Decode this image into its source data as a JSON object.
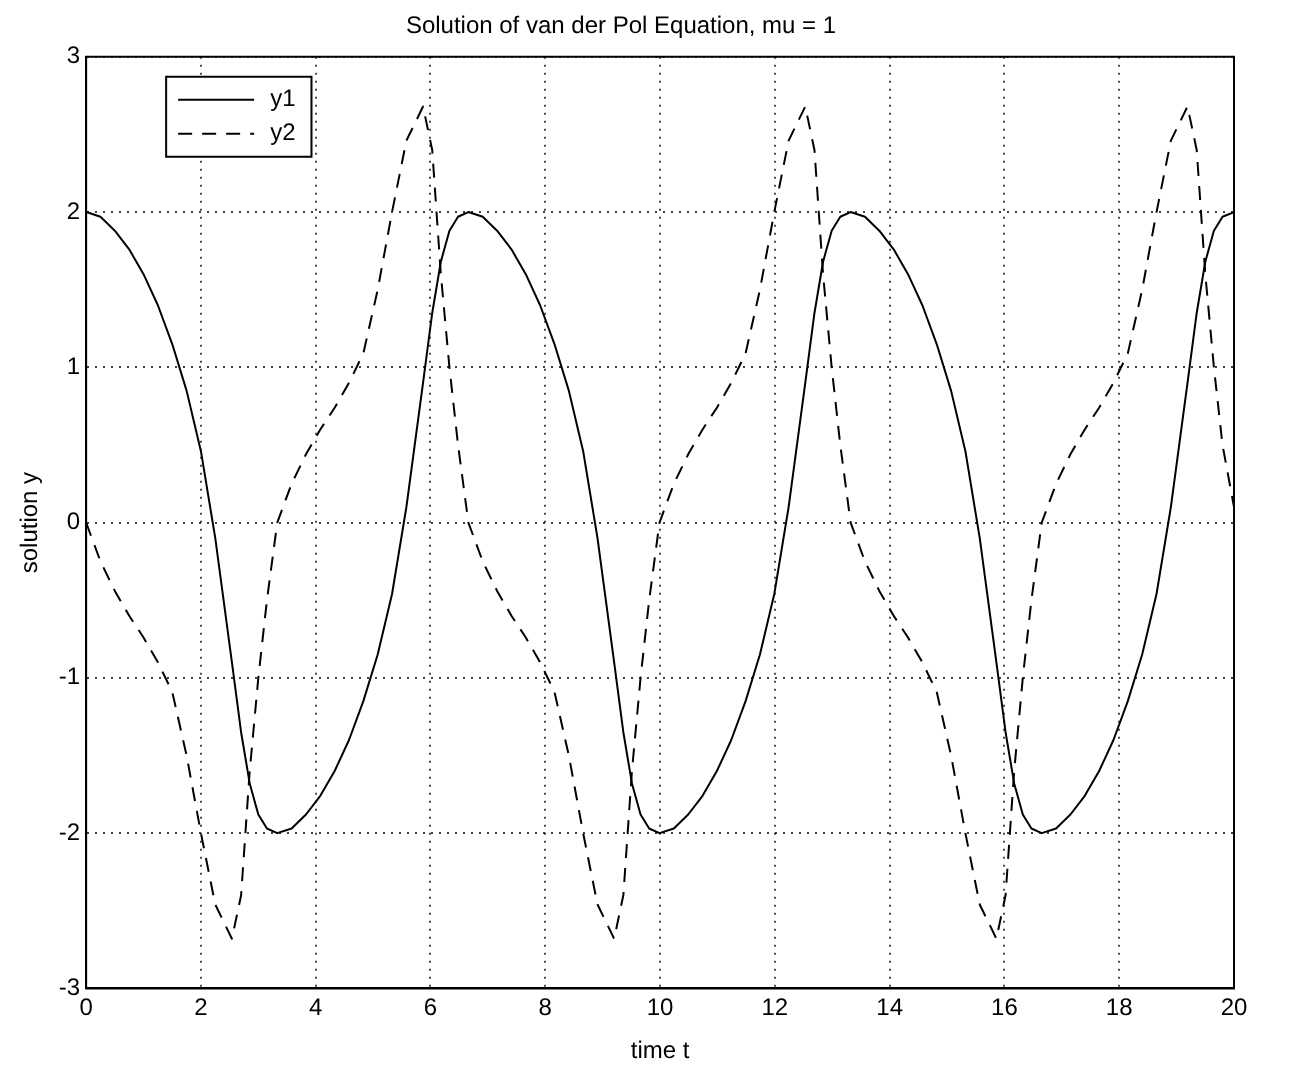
{
  "chart_data": {
    "type": "line",
    "title": "Solution of van der Pol Equation, mu = 1",
    "xlabel": "time t",
    "ylabel": "solution y",
    "x": [
      0,
      0.25,
      0.5,
      0.75,
      1,
      1.25,
      1.5,
      1.75,
      2,
      2.25,
      2.54,
      2.7,
      2.85,
      3,
      3.15,
      3.33,
      3.58,
      3.83,
      4.08,
      4.33,
      4.58,
      4.83,
      5.08,
      5.33,
      5.58,
      5.87,
      6.03,
      6.18,
      6.33,
      6.48,
      6.66,
      6.91,
      7.16,
      7.41,
      7.66,
      7.91,
      8.16,
      8.41,
      8.66,
      8.91,
      9.2,
      9.36,
      9.51,
      9.66,
      9.81,
      9.99,
      10.24,
      10.49,
      10.74,
      10.99,
      11.24,
      11.49,
      11.74,
      11.99,
      12.24,
      12.53,
      12.69,
      12.84,
      12.99,
      13.14,
      13.32,
      13.57,
      13.82,
      14.07,
      14.32,
      14.57,
      14.82,
      15.07,
      15.32,
      15.57,
      15.86,
      16.02,
      16.17,
      16.32,
      16.47,
      16.65,
      16.9,
      17.15,
      17.4,
      17.65,
      17.9,
      18.15,
      18.4,
      18.65,
      18.9,
      19.19,
      19.35,
      19.5,
      19.65,
      19.8,
      20
    ],
    "series": [
      {
        "name": "y1",
        "color": "#000000",
        "line_style": "solid",
        "values": [
          2,
          1.97,
          1.88,
          1.76,
          1.6,
          1.4,
          1.15,
          0.85,
          0.46,
          -0.1,
          -0.9,
          -1.35,
          -1.68,
          -1.88,
          -1.97,
          -2,
          -1.97,
          -1.88,
          -1.76,
          -1.6,
          -1.4,
          -1.15,
          -0.85,
          -0.46,
          0.1,
          0.9,
          1.35,
          1.68,
          1.88,
          1.97,
          2,
          1.97,
          1.88,
          1.76,
          1.6,
          1.4,
          1.15,
          0.85,
          0.46,
          -0.1,
          -0.9,
          -1.35,
          -1.68,
          -1.88,
          -1.97,
          -2,
          -1.97,
          -1.88,
          -1.76,
          -1.6,
          -1.4,
          -1.15,
          -0.85,
          -0.46,
          0.1,
          0.9,
          1.35,
          1.68,
          1.88,
          1.97,
          2,
          1.97,
          1.88,
          1.76,
          1.6,
          1.4,
          1.15,
          0.85,
          0.46,
          -0.1,
          -0.9,
          -1.35,
          -1.68,
          -1.88,
          -1.97,
          -2,
          -1.97,
          -1.88,
          -1.76,
          -1.6,
          -1.4,
          -1.15,
          -0.85,
          -0.46,
          0.1,
          0.9,
          1.35,
          1.68,
          1.88,
          1.97,
          2
        ]
      },
      {
        "name": "y2",
        "color": "#000000",
        "line_style": "dashed",
        "values": [
          0,
          -0.25,
          -0.44,
          -0.6,
          -0.74,
          -0.9,
          -1.09,
          -1.5,
          -2,
          -2.46,
          -2.68,
          -2.4,
          -1.6,
          -1,
          -0.5,
          0,
          0.25,
          0.44,
          0.6,
          0.74,
          0.9,
          1.09,
          1.5,
          2,
          2.46,
          2.68,
          2.4,
          1.6,
          1,
          0.5,
          0,
          -0.25,
          -0.44,
          -0.6,
          -0.74,
          -0.9,
          -1.09,
          -1.5,
          -2,
          -2.46,
          -2.68,
          -2.4,
          -1.6,
          -1,
          -0.5,
          0,
          0.25,
          0.44,
          0.6,
          0.74,
          0.9,
          1.09,
          1.5,
          2,
          2.46,
          2.68,
          2.4,
          1.6,
          1,
          0.5,
          0,
          -0.25,
          -0.44,
          -0.6,
          -0.74,
          -0.9,
          -1.09,
          -1.5,
          -2,
          -2.46,
          -2.68,
          -2.4,
          -1.6,
          -1,
          -0.5,
          0,
          0.25,
          0.44,
          0.6,
          0.74,
          0.9,
          1.09,
          1.5,
          2,
          2.46,
          2.68,
          2.4,
          1.6,
          1,
          0.5,
          0.1
        ]
      }
    ],
    "xlim": [
      0,
      20
    ],
    "xticks": [
      0,
      2,
      4,
      6,
      8,
      10,
      12,
      14,
      16,
      18,
      20
    ],
    "ylim": [
      -3,
      3
    ],
    "yticks": [
      -3,
      -2,
      -1,
      0,
      1,
      2,
      3
    ],
    "grid": true,
    "legend": "top left",
    "marker": "none"
  }
}
